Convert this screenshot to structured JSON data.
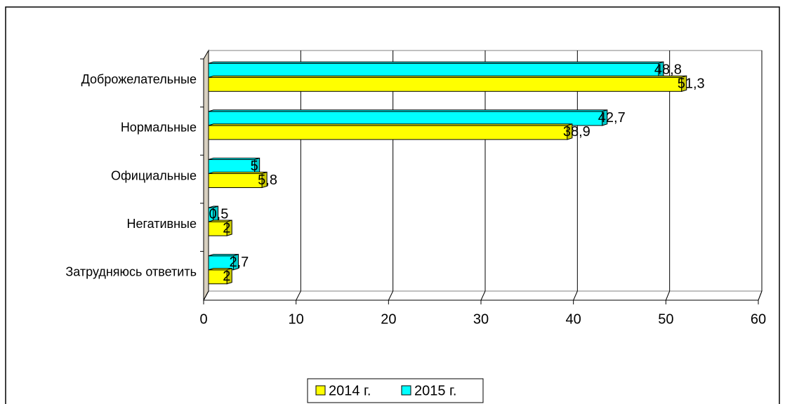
{
  "chart_data": {
    "type": "bar",
    "orientation": "horizontal",
    "three_d": true,
    "categories": [
      "Доброжелательные",
      "Нормальные",
      "Официальные",
      "Негативные",
      "Затрудняюсь ответить"
    ],
    "series": [
      {
        "name": "2014 г.",
        "color": "#ffff00",
        "values": [
          51.3,
          38.9,
          5.8,
          2,
          2
        ],
        "value_labels": [
          "51,3",
          "38,9",
          "5,8",
          "2",
          "2"
        ]
      },
      {
        "name": "2015 г.",
        "color": "#00ffff",
        "values": [
          48.8,
          42.7,
          5,
          0.5,
          2.7
        ],
        "value_labels": [
          "48,8",
          "42,7",
          "5",
          "0,5",
          "2,7"
        ]
      }
    ],
    "xlim": [
      0,
      60
    ],
    "xticks": [
      0,
      10,
      20,
      30,
      40,
      50,
      60
    ],
    "grid": true,
    "legend": "bottom"
  }
}
